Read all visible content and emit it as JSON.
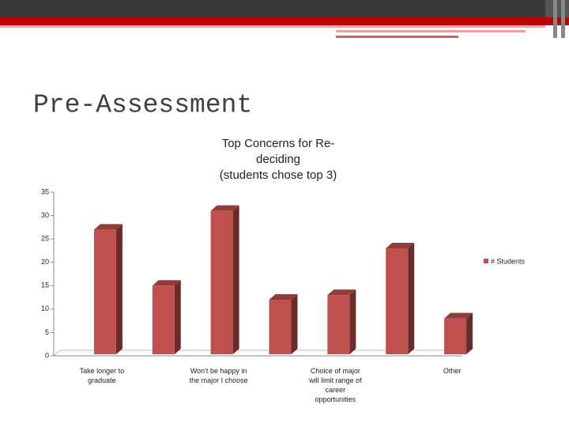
{
  "slide_title": "Pre-Assessment",
  "chart_data": {
    "type": "bar3d",
    "title": [
      "Top Concerns for Re-",
      "deciding",
      "(students chose top 3)"
    ],
    "categories": [
      "Take longer to graduate",
      null,
      "Won't be happy in the major I choose",
      null,
      "Choice of major will limit range of career opportunities",
      null,
      "Other"
    ],
    "series": [
      {
        "name": "# Students",
        "color": "#c0504d",
        "values": [
          27,
          15,
          31,
          12,
          13,
          23,
          8
        ]
      }
    ],
    "ylim": [
      0,
      35
    ],
    "yticks": [
      0,
      5,
      10,
      15,
      20,
      25,
      30,
      35
    ],
    "legend": "right"
  }
}
